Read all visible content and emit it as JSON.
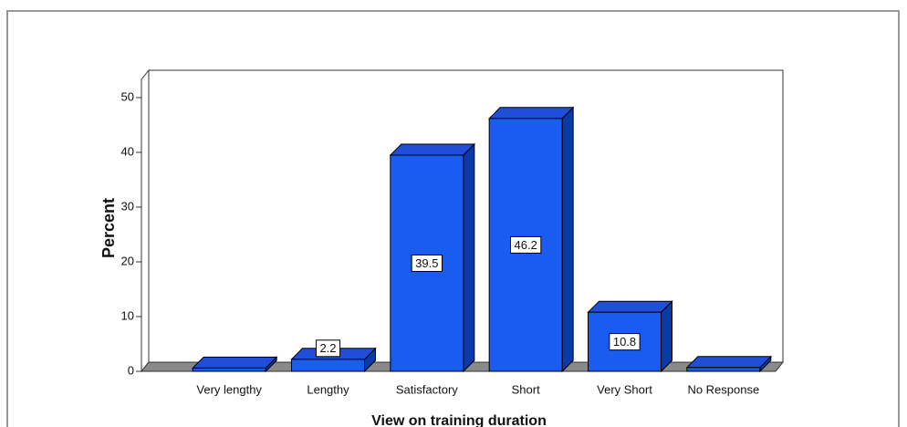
{
  "chart_data": {
    "type": "bar3d",
    "x_label": "View on training duration",
    "y_label": "Percent",
    "categories": [
      "Very lengthy",
      "Lengthy",
      "Satisfactory",
      "Short",
      "Very Short",
      "No Response"
    ],
    "values": [
      0.6,
      2.2,
      39.5,
      46.2,
      10.8,
      0.7
    ],
    "value_labels": [
      null,
      "2.2",
      "39.5",
      "46.2",
      "10.8",
      null
    ],
    "color": "#1a5cf0",
    "ylim": [
      0,
      50
    ],
    "yticks": [
      0,
      10,
      20,
      30,
      40,
      50
    ]
  }
}
